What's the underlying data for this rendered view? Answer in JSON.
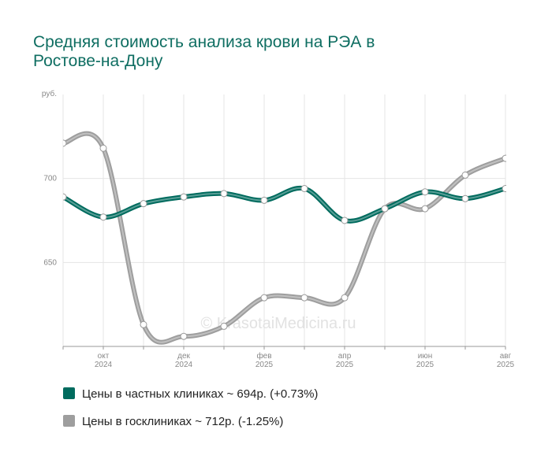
{
  "chart_data": {
    "type": "line",
    "title": [
      "Средняя стоимость анализа крови на РЭА в",
      "Ростове-на-Дону"
    ],
    "y_unit": "руб.",
    "watermark": "© KrasotaiMedicina.ru",
    "categories": [
      null,
      "окт 2024",
      null,
      "дек 2024",
      null,
      "фев 2025",
      null,
      "апр 2025",
      null,
      "июн 2025",
      null,
      "авг 2025"
    ],
    "series": [
      {
        "name": "Цены в частных клиниках ~ 694р. (+0.73%)",
        "color": "#006b5e",
        "values": [
          689,
          677,
          685,
          689,
          691,
          687,
          694,
          675,
          682,
          692,
          688,
          694
        ]
      },
      {
        "name": "Цены в госклиниках ~ 712р. (-1.25%)",
        "color": "#9e9e9e",
        "values": [
          721,
          718,
          613,
          606,
          612,
          629,
          629,
          629,
          682,
          682,
          702,
          712
        ]
      }
    ],
    "ylim": [
      600,
      750
    ],
    "yticks": [
      650,
      700
    ],
    "grid": true
  }
}
